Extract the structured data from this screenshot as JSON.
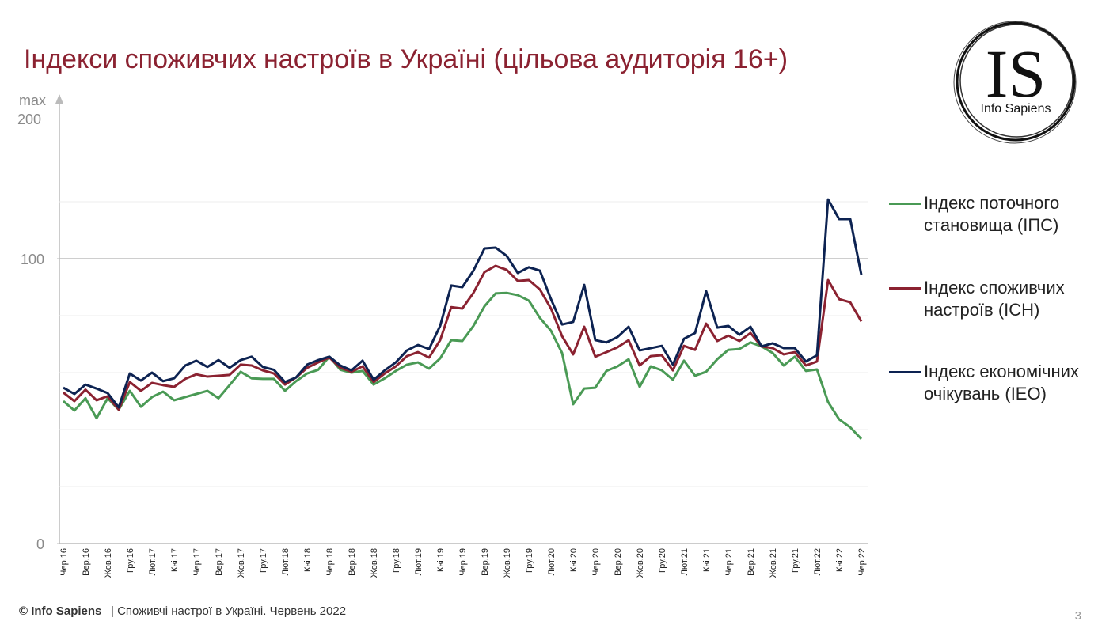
{
  "chart_data": {
    "type": "line",
    "title": "Індекси споживчих настроїв в Україні (цільова аудиторія 16+)",
    "y_top_labels": [
      "max",
      "200"
    ],
    "categories": [
      "Чер.16",
      null,
      "Вер.16",
      null,
      "Жов.16",
      null,
      "Гру.16",
      null,
      "Лют.17",
      null,
      "Кві.17",
      null,
      "Чер.17",
      null,
      "Вер.17",
      null,
      "Жов.17",
      null,
      "Гру.17",
      null,
      "Лют.18",
      null,
      "Кві.18",
      null,
      "Чер.18",
      null,
      "Вер.18",
      null,
      "Жов.18",
      null,
      "Гру.18",
      null,
      "Лют.19",
      null,
      "Кві.19",
      null,
      "Чер.19",
      null,
      "Вер.19",
      null,
      "Жов.19",
      null,
      "Гру.19",
      null,
      "Лют.20",
      null,
      "Кві.20",
      null,
      "Чер.20",
      null,
      "Вер.20",
      null,
      "Жов.20",
      null,
      "Гру.20",
      null,
      "Лют.21",
      null,
      "Кві.21",
      null,
      "Чер.21",
      null,
      "Вер.21",
      null,
      "Жов.21",
      null,
      "Гру.21",
      null,
      "Лют.22",
      null,
      "Кві.22",
      null,
      "Чер.22"
    ],
    "series": [
      {
        "name": "Індекс поточного становища (ІПС)",
        "color": "#4a9a55",
        "values": [
          50,
          46.7,
          51,
          44,
          51,
          47,
          53.6,
          48,
          51.4,
          53.3,
          50.3,
          51.4,
          52.5,
          53.6,
          51,
          55.6,
          60.3,
          58,
          57.8,
          57.8,
          53.6,
          57,
          59.7,
          61,
          65.6,
          61,
          60,
          60.6,
          55.8,
          58,
          60.6,
          62.8,
          63.6,
          61.4,
          65,
          71.4,
          71.1,
          76.4,
          83.3,
          87.8,
          88,
          87.2,
          85.3,
          79.2,
          74.7,
          66.9,
          48.9,
          54.4,
          54.7,
          60.6,
          62.2,
          64.7,
          55,
          62.2,
          60.8,
          57.5,
          64.2,
          58.9,
          60.3,
          64.7,
          68,
          68.3,
          70.6,
          69.2,
          66.9,
          62.5,
          65.6,
          60.6,
          61.1,
          49.7,
          43.6,
          40.8,
          36.7
        ]
      },
      {
        "name": "Індекс споживчих настроїв (ІСН)",
        "color": "#8b2231",
        "values": [
          53,
          50,
          54,
          50.3,
          51.7,
          47,
          56.7,
          53.6,
          56.4,
          55.6,
          55,
          57.8,
          59.4,
          58.6,
          58.9,
          59.2,
          62.8,
          62.5,
          60.8,
          59.7,
          55.8,
          58.3,
          61.7,
          63.6,
          65.3,
          61.7,
          60.3,
          62.2,
          56.7,
          59.7,
          62.2,
          65.8,
          67.2,
          65.3,
          71.4,
          83,
          82.5,
          88,
          95.3,
          97.5,
          96.1,
          92.2,
          92.5,
          89.2,
          82.5,
          72.8,
          66.4,
          76.1,
          65.6,
          67.2,
          68.9,
          71.4,
          62.5,
          65.8,
          66.1,
          60.8,
          69.4,
          68,
          77.2,
          71.1,
          73,
          71.1,
          73.9,
          69.2,
          68.6,
          66.4,
          67.2,
          62.5,
          63.9,
          92.5,
          85.8,
          84.7,
          78
        ]
      },
      {
        "name": "Індекс економічних очікувань (ІЕО)",
        "color": "#0d2352",
        "values": [
          54.7,
          52.5,
          55.8,
          54.4,
          52.8,
          47.8,
          59.7,
          57.2,
          60,
          57,
          58,
          62.5,
          64.2,
          62,
          64.4,
          61.7,
          64.4,
          65.6,
          62,
          61,
          56.7,
          58.3,
          62.8,
          64.4,
          65.6,
          62.5,
          60.8,
          64.2,
          57.5,
          60.8,
          63.6,
          67.8,
          69.7,
          68.3,
          76.4,
          90.6,
          90,
          95.8,
          103.6,
          103.9,
          101,
          95,
          97,
          95.8,
          85.8,
          76.9,
          77.8,
          90.8,
          71.4,
          70.6,
          72.5,
          76.1,
          67.8,
          68.6,
          69.4,
          62.8,
          71.9,
          73.9,
          88.6,
          75.8,
          76.4,
          73.3,
          76.1,
          69.2,
          70.3,
          68.6,
          68.6,
          63.9,
          66.1,
          120.8,
          113.9,
          113.9,
          94.4
        ]
      }
    ],
    "ylim": [
      0,
      157.5
    ],
    "yticks": [
      0,
      100
    ],
    "ygrid": [
      20,
      40,
      60,
      80,
      100,
      120
    ]
  },
  "logo": {
    "mark": "IS",
    "text": "Info Sapiens"
  },
  "footer": {
    "source": "© Info Sapiens",
    "text": "| Споживчі настрої в Україні. Червень 2022",
    "page": "3"
  }
}
